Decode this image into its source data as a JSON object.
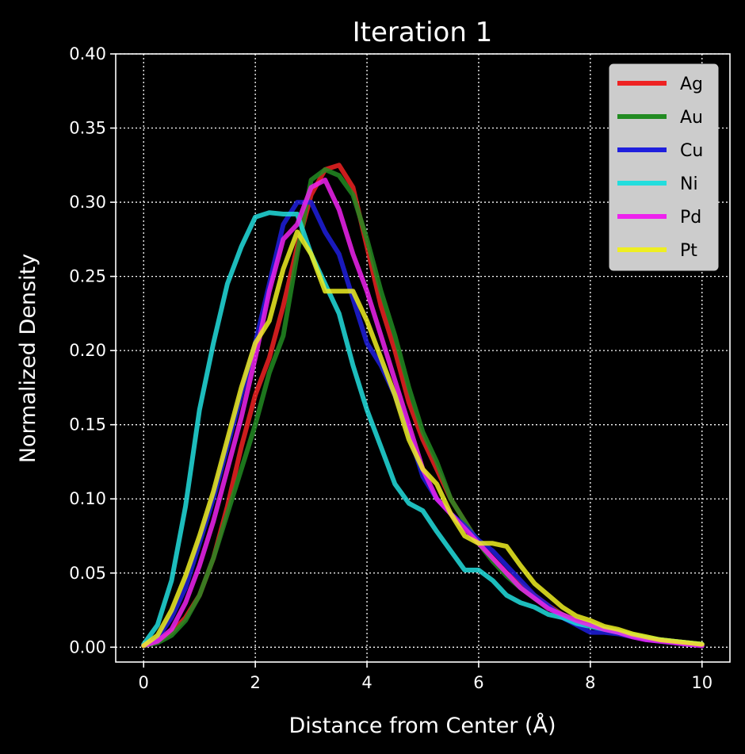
{
  "chart_data": {
    "type": "line",
    "title": "Iteration 1",
    "xlabel": "Distance from Center (Å)",
    "ylabel": "Normalized Density",
    "xlim": [
      -0.5,
      10.5
    ],
    "ylim": [
      -0.01,
      0.4
    ],
    "xticks": [
      0,
      2,
      4,
      6,
      8,
      10
    ],
    "xtick_labels": [
      "0",
      "2",
      "4",
      "6",
      "8",
      "10"
    ],
    "yticks": [
      0.0,
      0.05,
      0.1,
      0.15,
      0.2,
      0.25,
      0.3,
      0.35,
      0.4
    ],
    "ytick_labels": [
      "0.00",
      "0.05",
      "0.10",
      "0.15",
      "0.20",
      "0.25",
      "0.30",
      "0.35",
      "0.40"
    ],
    "grid": true,
    "legend_position": "top-right",
    "background": "#000000",
    "series": [
      {
        "name": "Ag",
        "color": "#ee2222",
        "x": [
          0,
          0.25,
          0.5,
          0.75,
          1,
          1.25,
          1.5,
          1.75,
          2,
          2.25,
          2.5,
          2.75,
          3,
          3.25,
          3.5,
          3.75,
          4,
          4.25,
          4.5,
          4.75,
          5,
          5.25,
          5.5,
          5.75,
          6,
          6.25,
          6.5,
          6.75,
          7,
          7.25,
          7.5,
          7.75,
          8,
          8.25,
          8.5,
          8.75,
          9,
          9.25,
          9.5,
          9.75,
          10
        ],
        "y": [
          0.001,
          0.004,
          0.01,
          0.02,
          0.035,
          0.06,
          0.095,
          0.135,
          0.17,
          0.195,
          0.23,
          0.27,
          0.305,
          0.322,
          0.325,
          0.31,
          0.27,
          0.23,
          0.2,
          0.165,
          0.14,
          0.12,
          0.1,
          0.085,
          0.07,
          0.06,
          0.05,
          0.042,
          0.035,
          0.028,
          0.022,
          0.018,
          0.015,
          0.012,
          0.01,
          0.008,
          0.006,
          0.005,
          0.004,
          0.003,
          0.002
        ]
      },
      {
        "name": "Au",
        "color": "#228b22",
        "x": [
          0,
          0.25,
          0.5,
          0.75,
          1,
          1.25,
          1.5,
          1.75,
          2,
          2.25,
          2.5,
          2.75,
          3,
          3.25,
          3.5,
          3.75,
          4,
          4.25,
          4.5,
          4.75,
          5,
          5.25,
          5.5,
          5.75,
          6,
          6.25,
          6.5,
          6.75,
          7,
          7.25,
          7.5,
          7.75,
          8,
          8.25,
          8.5,
          8.75,
          9,
          9.25,
          9.5,
          9.75,
          10
        ],
        "y": [
          0.001,
          0.003,
          0.008,
          0.018,
          0.035,
          0.06,
          0.09,
          0.12,
          0.15,
          0.185,
          0.21,
          0.265,
          0.315,
          0.322,
          0.318,
          0.305,
          0.275,
          0.24,
          0.21,
          0.175,
          0.145,
          0.125,
          0.1,
          0.085,
          0.07,
          0.058,
          0.048,
          0.04,
          0.033,
          0.027,
          0.022,
          0.018,
          0.016,
          0.013,
          0.011,
          0.009,
          0.007,
          0.005,
          0.004,
          0.003,
          0.002
        ]
      },
      {
        "name": "Cu",
        "color": "#1f1fdd",
        "x": [
          0,
          0.25,
          0.5,
          0.75,
          1,
          1.25,
          1.5,
          1.75,
          2,
          2.25,
          2.5,
          2.75,
          3,
          3.25,
          3.5,
          3.75,
          4,
          4.25,
          4.5,
          4.75,
          5,
          5.25,
          5.5,
          5.75,
          6,
          6.25,
          6.5,
          6.75,
          7,
          7.25,
          7.5,
          7.75,
          8,
          8.25,
          8.5,
          8.75,
          9,
          9.25,
          9.5,
          9.75,
          10
        ],
        "y": [
          0.001,
          0.006,
          0.02,
          0.04,
          0.07,
          0.1,
          0.135,
          0.17,
          0.205,
          0.245,
          0.285,
          0.3,
          0.3,
          0.28,
          0.265,
          0.235,
          0.205,
          0.19,
          0.17,
          0.145,
          0.115,
          0.1,
          0.09,
          0.082,
          0.072,
          0.065,
          0.055,
          0.045,
          0.035,
          0.028,
          0.02,
          0.015,
          0.01,
          0.01,
          0.009,
          0.007,
          0.005,
          0.004,
          0.003,
          0.002,
          0.001
        ]
      },
      {
        "name": "Ni",
        "color": "#22dddd",
        "x": [
          0,
          0.25,
          0.5,
          0.75,
          1,
          1.25,
          1.5,
          1.75,
          2,
          2.25,
          2.5,
          2.75,
          3,
          3.25,
          3.5,
          3.75,
          4,
          4.25,
          4.5,
          4.75,
          5,
          5.25,
          5.5,
          5.75,
          6,
          6.25,
          6.5,
          6.75,
          7,
          7.25,
          7.5,
          7.75,
          8,
          8.25,
          8.5,
          8.75,
          9,
          9.25,
          9.5,
          9.75,
          10
        ],
        "y": [
          0.002,
          0.015,
          0.045,
          0.095,
          0.16,
          0.205,
          0.245,
          0.27,
          0.29,
          0.293,
          0.292,
          0.292,
          0.265,
          0.245,
          0.225,
          0.19,
          0.16,
          0.135,
          0.11,
          0.097,
          0.092,
          0.078,
          0.065,
          0.052,
          0.052,
          0.045,
          0.035,
          0.03,
          0.027,
          0.022,
          0.02,
          0.016,
          0.014,
          0.012,
          0.01,
          0.008,
          0.006,
          0.005,
          0.004,
          0.003,
          0.002
        ]
      },
      {
        "name": "Pd",
        "color": "#ee22ee",
        "x": [
          0,
          0.25,
          0.5,
          0.75,
          1,
          1.25,
          1.5,
          1.75,
          2,
          2.25,
          2.5,
          2.75,
          3,
          3.25,
          3.5,
          3.75,
          4,
          4.25,
          4.5,
          4.75,
          5,
          5.25,
          5.5,
          5.75,
          6,
          6.25,
          6.5,
          6.75,
          7,
          7.25,
          7.5,
          7.75,
          8,
          8.25,
          8.5,
          8.75,
          9,
          9.25,
          9.5,
          9.75,
          10
        ],
        "y": [
          0.001,
          0.004,
          0.012,
          0.03,
          0.055,
          0.085,
          0.12,
          0.155,
          0.195,
          0.24,
          0.275,
          0.285,
          0.31,
          0.315,
          0.295,
          0.265,
          0.24,
          0.21,
          0.18,
          0.15,
          0.12,
          0.1,
          0.09,
          0.08,
          0.07,
          0.06,
          0.05,
          0.04,
          0.033,
          0.026,
          0.022,
          0.018,
          0.015,
          0.012,
          0.01,
          0.007,
          0.005,
          0.004,
          0.003,
          0.002,
          0.001
        ]
      },
      {
        "name": "Pt",
        "color": "#eeee22",
        "x": [
          0,
          0.25,
          0.5,
          0.75,
          1,
          1.25,
          1.5,
          1.75,
          2,
          2.25,
          2.5,
          2.75,
          3,
          3.25,
          3.5,
          3.75,
          4,
          4.25,
          4.5,
          4.75,
          5,
          5.25,
          5.5,
          5.75,
          6,
          6.25,
          6.5,
          6.75,
          7,
          7.25,
          7.5,
          7.75,
          8,
          8.25,
          8.5,
          8.75,
          9,
          9.25,
          9.5,
          9.75,
          10
        ],
        "y": [
          0.001,
          0.008,
          0.025,
          0.048,
          0.075,
          0.105,
          0.14,
          0.175,
          0.205,
          0.22,
          0.255,
          0.28,
          0.265,
          0.24,
          0.24,
          0.24,
          0.22,
          0.195,
          0.17,
          0.14,
          0.12,
          0.11,
          0.09,
          0.075,
          0.07,
          0.07,
          0.068,
          0.055,
          0.043,
          0.035,
          0.027,
          0.021,
          0.018,
          0.014,
          0.012,
          0.009,
          0.007,
          0.005,
          0.004,
          0.003,
          0.002
        ]
      }
    ]
  }
}
